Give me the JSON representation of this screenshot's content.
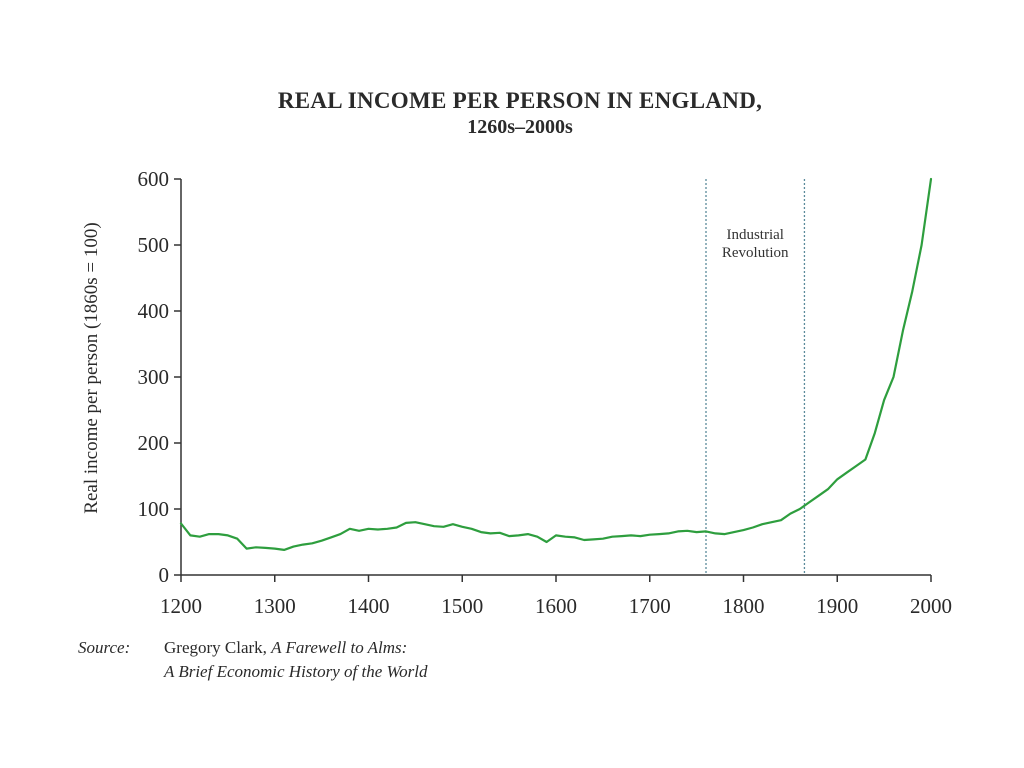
{
  "chart_data": {
    "type": "line",
    "title": "REAL INCOME PER PERSON IN ENGLAND,",
    "subtitle": "1260s–2000s",
    "ylabel": "Real income per person (1860s = 100)",
    "xlabel": "",
    "xlim": [
      1200,
      2000
    ],
    "ylim": [
      0,
      600
    ],
    "x_ticks": [
      1200,
      1300,
      1400,
      1500,
      1600,
      1700,
      1800,
      1900,
      2000
    ],
    "y_ticks": [
      0,
      100,
      200,
      300,
      400,
      500,
      600
    ],
    "grid": false,
    "legend": "none",
    "line_color": "#2e9e3e",
    "x": [
      1200,
      1210,
      1220,
      1230,
      1240,
      1250,
      1260,
      1270,
      1280,
      1290,
      1300,
      1310,
      1320,
      1330,
      1340,
      1350,
      1360,
      1370,
      1380,
      1390,
      1400,
      1410,
      1420,
      1430,
      1440,
      1450,
      1460,
      1470,
      1480,
      1490,
      1500,
      1510,
      1520,
      1530,
      1540,
      1550,
      1560,
      1570,
      1580,
      1590,
      1600,
      1610,
      1620,
      1630,
      1640,
      1650,
      1660,
      1670,
      1680,
      1690,
      1700,
      1710,
      1720,
      1730,
      1740,
      1750,
      1760,
      1770,
      1780,
      1790,
      1800,
      1810,
      1820,
      1830,
      1840,
      1850,
      1860,
      1870,
      1880,
      1890,
      1900,
      1910,
      1920,
      1930,
      1940,
      1950,
      1960,
      1970,
      1980,
      1990,
      2000
    ],
    "y": [
      78,
      60,
      58,
      62,
      62,
      60,
      55,
      40,
      42,
      41,
      40,
      38,
      43,
      46,
      48,
      52,
      57,
      62,
      70,
      67,
      70,
      69,
      70,
      72,
      79,
      80,
      77,
      74,
      73,
      77,
      73,
      70,
      65,
      63,
      64,
      59,
      60,
      62,
      58,
      50,
      60,
      58,
      57,
      53,
      54,
      55,
      58,
      59,
      60,
      59,
      61,
      62,
      63,
      66,
      67,
      65,
      66,
      63,
      62,
      65,
      68,
      72,
      77,
      80,
      83,
      93,
      100,
      110,
      120,
      130,
      145,
      155,
      165,
      175,
      215,
      265,
      300,
      370,
      430,
      500,
      600
    ],
    "annotations": [
      {
        "text_line_1": "Industrial",
        "text_line_2": "Revolution",
        "x_start": 1760,
        "x_end": 1865
      }
    ]
  },
  "source": {
    "label": "Source",
    "colon": ":",
    "author": "Gregory Clark, ",
    "book_title_1": "A Farewell to Alms:",
    "book_title_2": "A Brief Economic History of the World"
  }
}
